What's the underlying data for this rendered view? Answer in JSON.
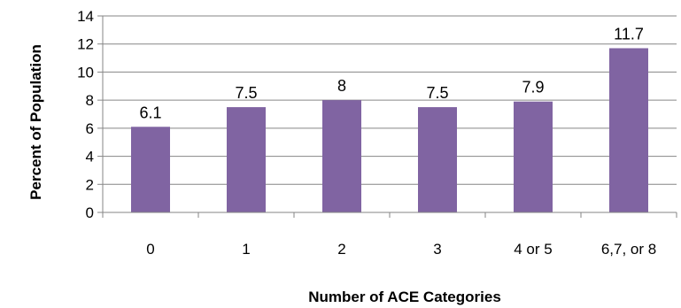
{
  "chart_data": {
    "type": "bar",
    "title": "",
    "xlabel": "Number of ACE Categories",
    "ylabel": "Percent of Population",
    "categories": [
      "0",
      "1",
      "2",
      "3",
      "4 or 5",
      "6,7, or 8"
    ],
    "values": [
      6.1,
      7.5,
      8,
      7.5,
      7.9,
      11.7
    ],
    "data_labels": [
      "6.1",
      "7.5",
      "8",
      "7.5",
      "7.9",
      "11.7"
    ],
    "ylim": [
      0,
      14
    ],
    "yticks": [
      "0",
      "2",
      "4",
      "6",
      "8",
      "10",
      "12",
      "14"
    ],
    "grid": true,
    "legend": "none",
    "bar_color": "#8064A2",
    "grid_color": "#868686"
  }
}
